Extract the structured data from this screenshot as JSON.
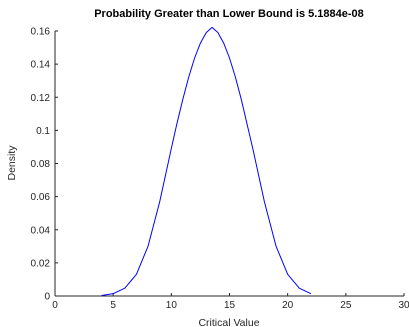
{
  "chart_data": {
    "type": "line",
    "title": "Probability Greater than Lower Bound is 5.1884e-08",
    "xlabel": "Critical Value",
    "ylabel": "Density",
    "xlim": [
      0,
      30
    ],
    "ylim": [
      0,
      0.16
    ],
    "x_ticks": [
      0,
      5,
      10,
      15,
      20,
      25,
      30
    ],
    "y_ticks": [
      0,
      0.02,
      0.04,
      0.06,
      0.08,
      0.1,
      0.12,
      0.14,
      0.16
    ],
    "x_tick_labels": [
      "0",
      "5",
      "10",
      "15",
      "20",
      "25",
      "30"
    ],
    "y_tick_labels": [
      "0",
      "0.02",
      "0.04",
      "0.06",
      "0.08",
      "0.1",
      "0.12",
      "0.14",
      "0.16"
    ],
    "grid": false,
    "series": [
      {
        "color": "#0000ff",
        "x": [
          4.0,
          5.0,
          6.0,
          7.0,
          8.0,
          9.0,
          10.0,
          10.5,
          11.0,
          11.5,
          12.0,
          12.5,
          13.0,
          13.5,
          14.0,
          14.5,
          15.0,
          15.5,
          16.0,
          17.0,
          18.0,
          19.0,
          20.0,
          21.0,
          22.0
        ],
        "y": [
          0.0003,
          0.0014,
          0.0047,
          0.0131,
          0.0301,
          0.0569,
          0.0891,
          0.1047,
          0.1191,
          0.1323,
          0.1437,
          0.1527,
          0.159,
          0.1622,
          0.1591,
          0.1527,
          0.1437,
          0.1323,
          0.1191,
          0.0891,
          0.0569,
          0.0301,
          0.0131,
          0.0047,
          0.0014
        ]
      }
    ]
  }
}
